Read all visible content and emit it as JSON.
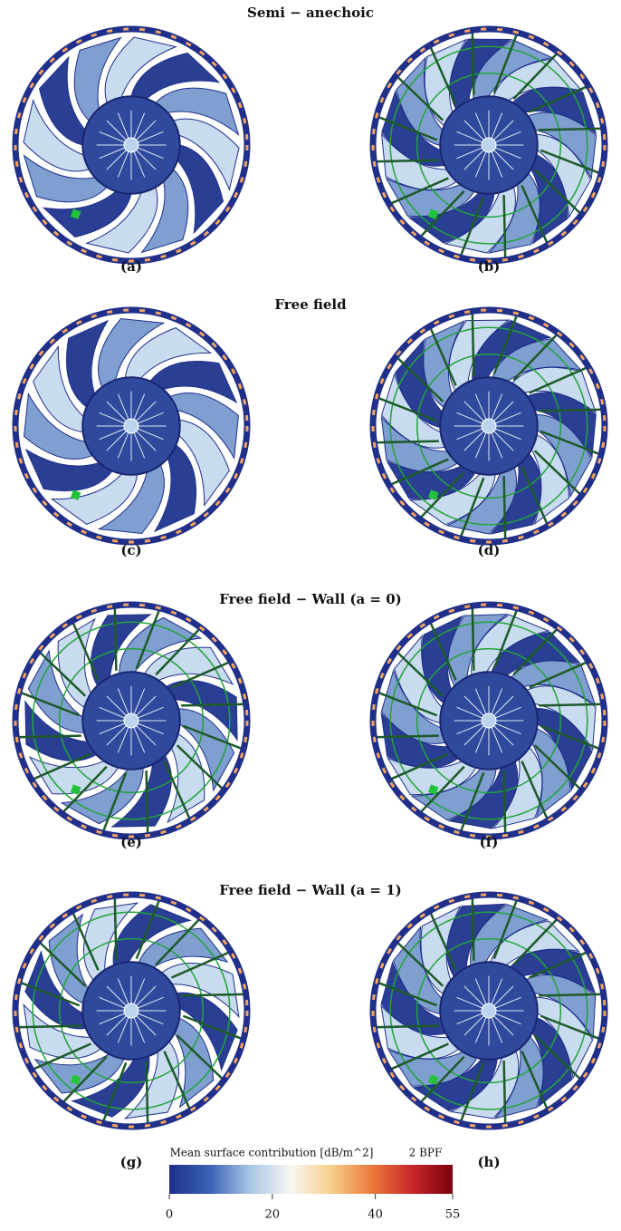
{
  "sections": [
    {
      "title": "Semi − anechoic",
      "panels": [
        "(a)",
        "(b)"
      ]
    },
    {
      "title": "Free field",
      "panels": [
        "(c)",
        "(d)"
      ]
    },
    {
      "title": "Free field − Wall (a = 0)",
      "panels": [
        "(e)",
        "(f)"
      ]
    },
    {
      "title": "Free field − Wall (a = 1)",
      "panels": [
        "(g)",
        "(h)"
      ]
    }
  ],
  "colorbar": {
    "label": "Mean surface contribution [dB/m^2]",
    "annotation": "2 BPF",
    "lim": [
      0,
      55
    ],
    "ticks": [
      0,
      20,
      40,
      55
    ],
    "colors": [
      "#1f2f8a",
      "#3a62b5",
      "#a9c6e6",
      "#f7f7f2",
      "#f6cf8a",
      "#ec7a3c",
      "#c8262a",
      "#7a0010"
    ]
  }
}
